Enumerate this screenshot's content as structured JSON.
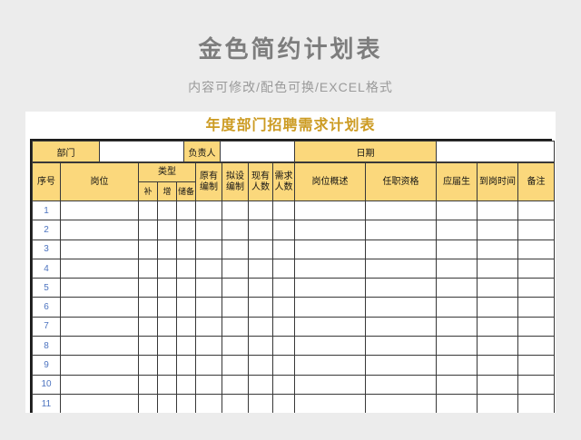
{
  "page": {
    "title": "金色简约计划表",
    "subtitle": "内容可修改/配色可换/EXCEL格式"
  },
  "sheet": {
    "title": "年度部门招聘需求计划表",
    "info": {
      "department_label": "部门",
      "department_value": "",
      "manager_label": "负责人",
      "manager_value": "",
      "date_label": "日期",
      "date_value": ""
    },
    "header": {
      "seq": "序号",
      "position": "岗位",
      "type_group": "类型",
      "type_fill": "补",
      "type_add": "增",
      "type_reserve": "储备",
      "orig_headcount": "原有编制",
      "planned_headcount": "拟设编制",
      "current_count": "现有人数",
      "required_count": "需求人数",
      "job_summary": "岗位概述",
      "qualifications": "任职资格",
      "fresh_graduate": "应届生",
      "start_date": "到岗时间",
      "remarks": "备注"
    },
    "rows": [
      {
        "seq": "1"
      },
      {
        "seq": "2"
      },
      {
        "seq": "3"
      },
      {
        "seq": "4"
      },
      {
        "seq": "5"
      },
      {
        "seq": "6"
      },
      {
        "seq": "7"
      },
      {
        "seq": "8"
      },
      {
        "seq": "9"
      },
      {
        "seq": "10"
      },
      {
        "seq": "11"
      },
      {
        "seq": ""
      }
    ],
    "column_count": 14
  },
  "colors": {
    "page_background": "#ececec",
    "card_background": "#ffffff",
    "accent_yellow": "#fbd87c",
    "sheet_title_gold": "#cc9b22",
    "page_title_gray": "#7d7d7d",
    "row_number_blue": "#4d74c0",
    "grid_border": "#383838"
  }
}
